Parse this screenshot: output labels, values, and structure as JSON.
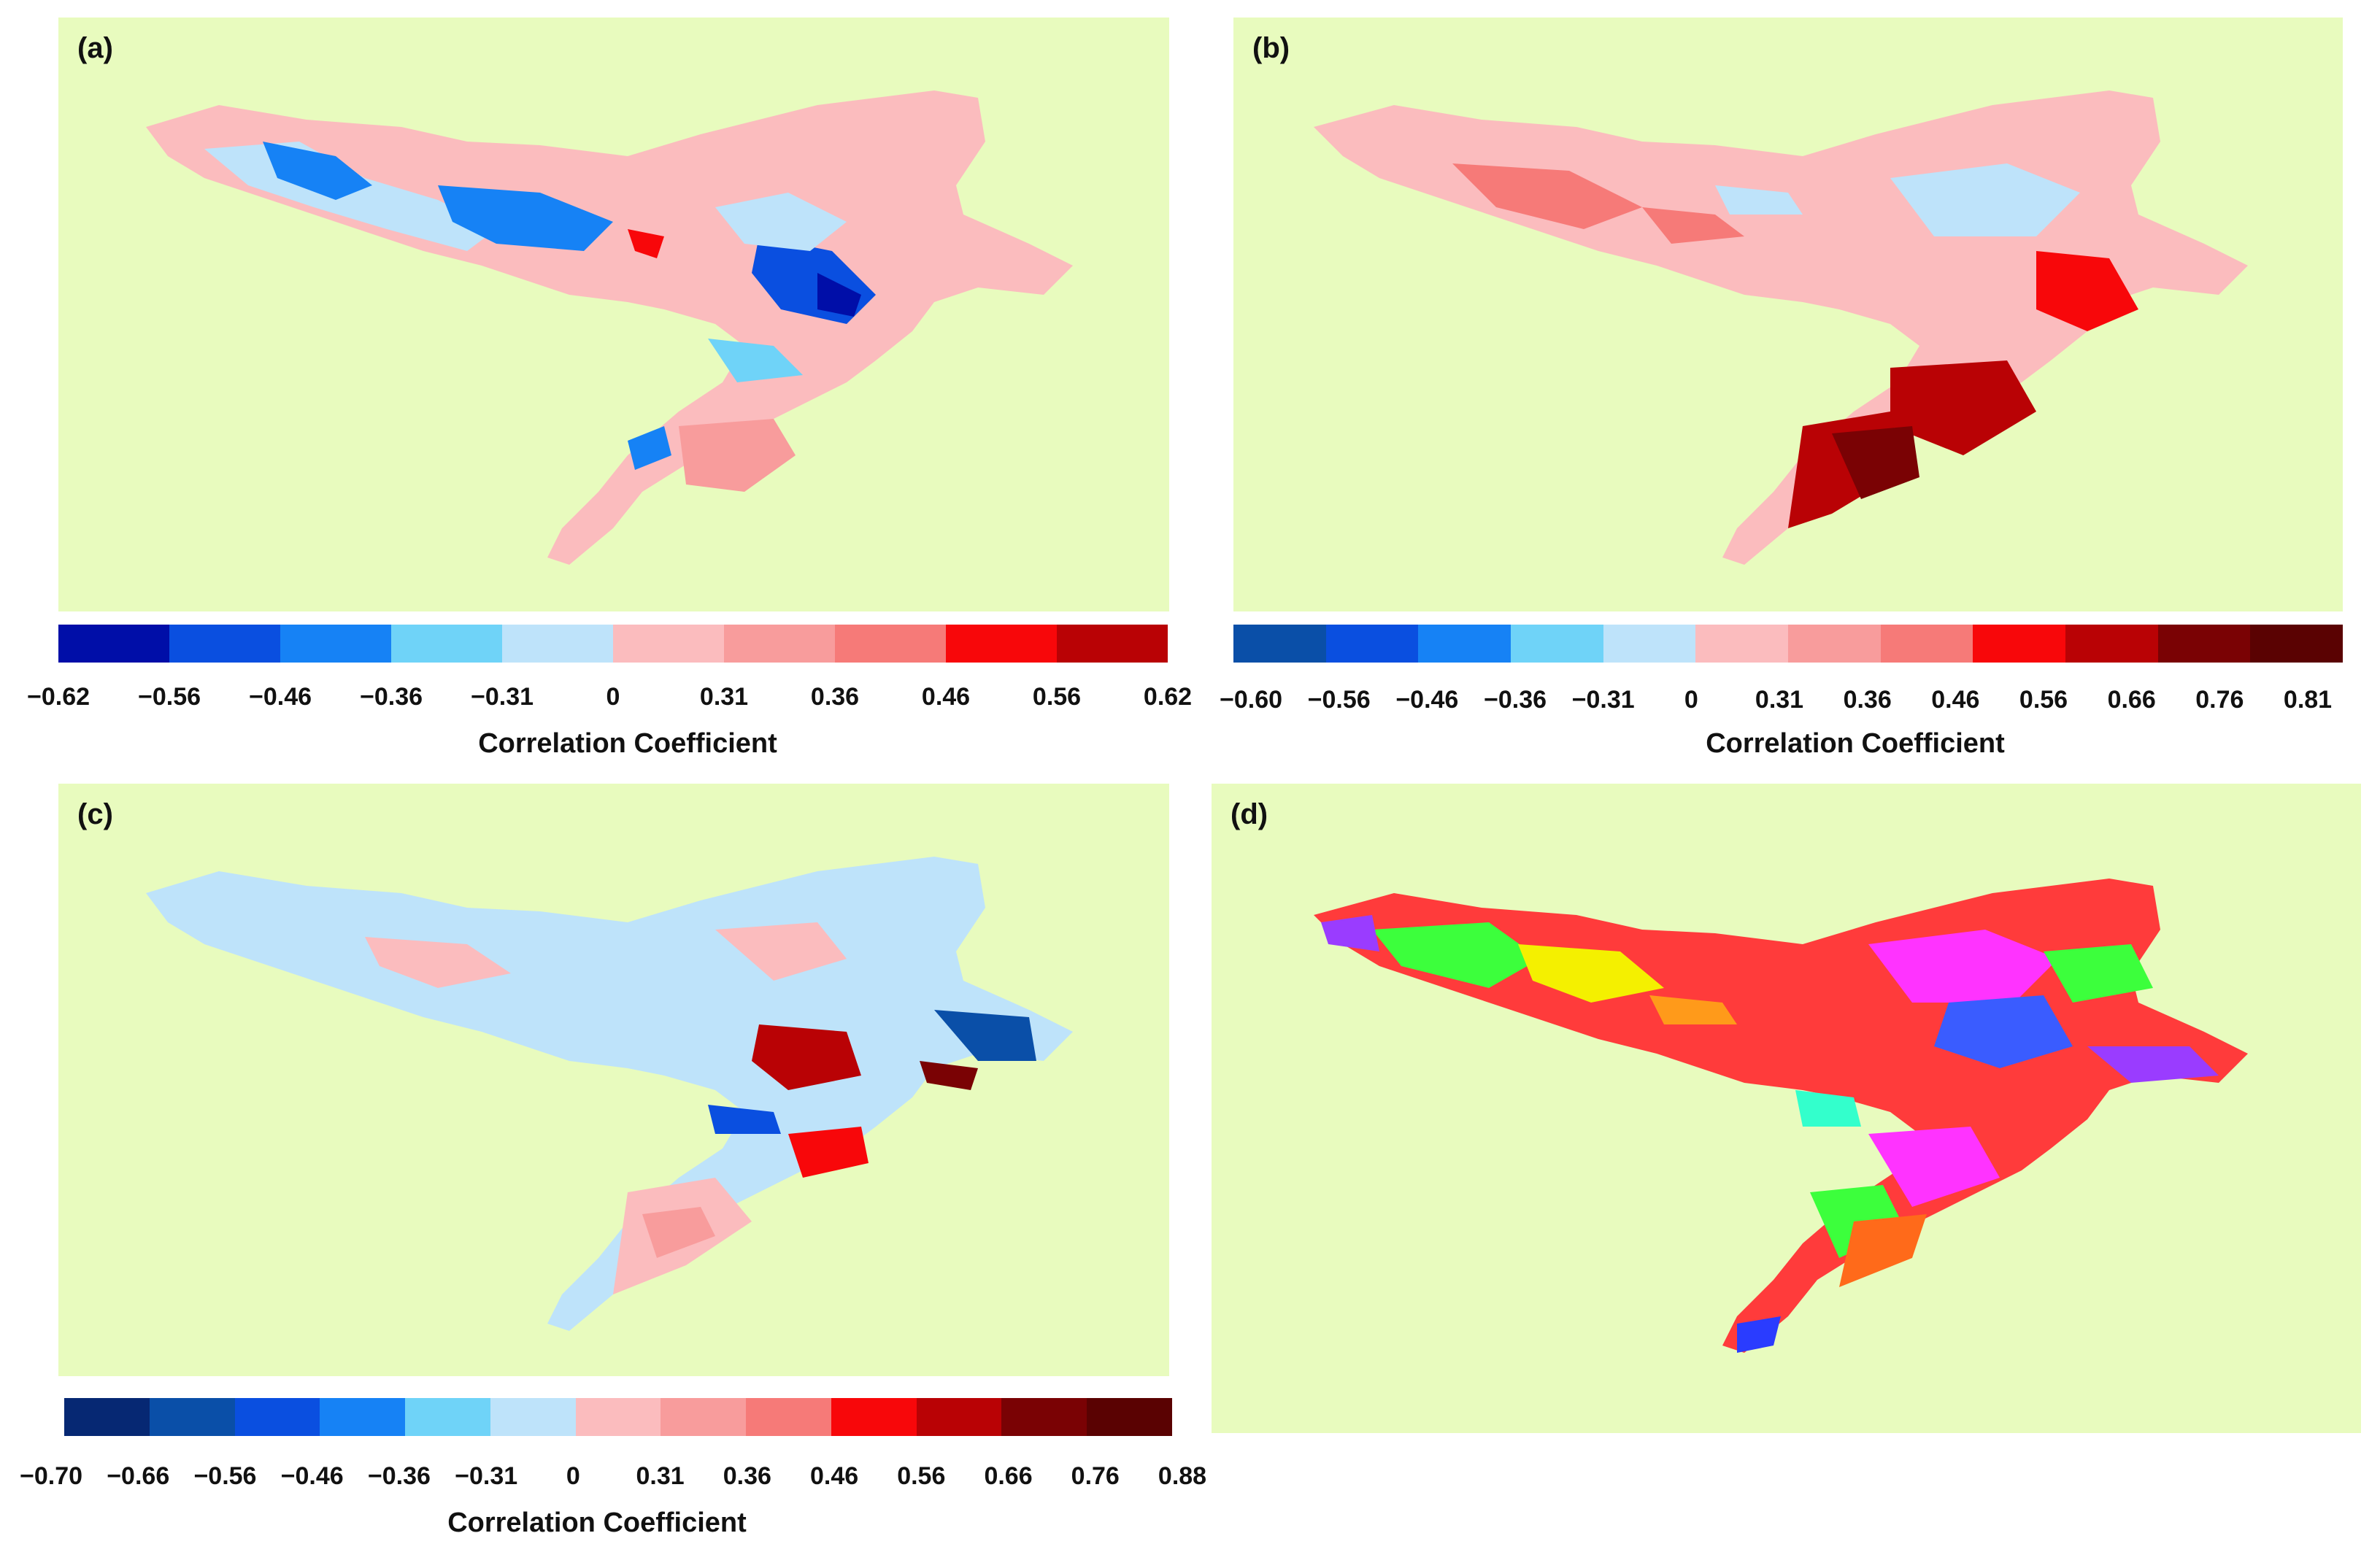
{
  "panels": {
    "a": {
      "label": "(a)",
      "colors": [
        "#000ea8",
        "#0a4fe0",
        "#1682f5",
        "#6fd3f8",
        "#bee3fa",
        "#fbbcbe",
        "#f89c9c",
        "#f67a78",
        "#f8070a",
        "#b90205"
      ],
      "ticks": [
        "−0.62",
        "−0.56",
        "−0.46",
        "−0.36",
        "−0.31",
        "0",
        "0.31",
        "0.36",
        "0.46",
        "0.56",
        "0.62"
      ],
      "title": "Correlation Coefficient"
    },
    "b": {
      "label": "(b)",
      "colors": [
        "#0a4fa8",
        "#0a4fe0",
        "#1682f5",
        "#6fd3f8",
        "#bee3fa",
        "#fbbcbe",
        "#f89c9c",
        "#f67a78",
        "#f8070a",
        "#b90205",
        "#7a0204",
        "#5a0202"
      ],
      "ticks": [
        "−0.60",
        "−0.56",
        "−0.46",
        "−0.36",
        "−0.31",
        "0",
        "0.31",
        "0.36",
        "0.46",
        "0.56",
        "0.66",
        "0.76",
        "0.81"
      ],
      "title": "Correlation Coefficient"
    },
    "c": {
      "label": "(c)",
      "colors": [
        "#062873",
        "#0a4fa8",
        "#0a4fe0",
        "#1682f5",
        "#6fd3f8",
        "#bee3fa",
        "#fbbcbe",
        "#f89c9c",
        "#f67a78",
        "#f8070a",
        "#b90205",
        "#7a0204",
        "#5a0202"
      ],
      "ticks": [
        "−0.70",
        "−0.66",
        "−0.56",
        "−0.46",
        "−0.36",
        "−0.31",
        "0",
        "0.31",
        "0.36",
        "0.46",
        "0.56",
        "0.66",
        "0.76",
        "0.88"
      ],
      "title": "Correlation Coefficient"
    },
    "d": {
      "label": "(d)"
    }
  }
}
